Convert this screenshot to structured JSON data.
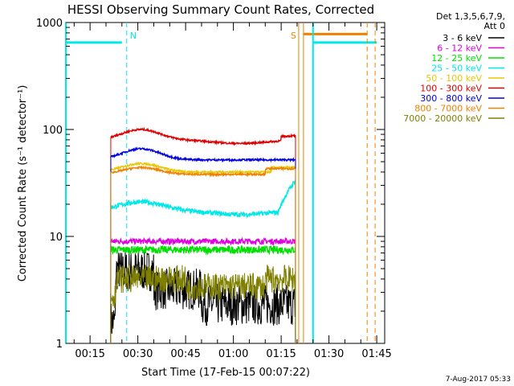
{
  "chart_data": {
    "type": "line",
    "title": "HESSI Observing Summary Count Rates, Corrected",
    "xlabel": "Start Time (17-Feb-15 00:07:22)",
    "ylabel": "Corrected Count Rate (s⁻¹ detector⁻¹)",
    "yscale": "log",
    "ylim": [
      1,
      1000
    ],
    "y_ticks": [
      {
        "value": 1,
        "label": "1"
      },
      {
        "value": 10,
        "label": "10"
      },
      {
        "value": 100,
        "label": "100"
      },
      {
        "value": 1000,
        "label": "1000"
      }
    ],
    "xlim_minutes": [
      7.4,
      47.5
    ],
    "x_ticks": [
      {
        "min": 15,
        "label": "00:15"
      },
      {
        "min": 30,
        "label": "00:30"
      },
      {
        "min": 45,
        "label": "00:45"
      },
      {
        "min": 60,
        "label": "01:00"
      },
      {
        "min": 75,
        "label": "01:15"
      },
      {
        "min": 90,
        "label": "01:30"
      },
      {
        "min": 105,
        "label": "01:45"
      }
    ],
    "legend_header": [
      "Det 1,3,5,6,7,9,",
      "Att 0"
    ],
    "legend_position": "top-right",
    "series": [
      {
        "name": "3 - 6 keV",
        "color": "#000000",
        "level": 2.5,
        "noise": 0.45
      },
      {
        "name": "6 - 12 keV",
        "color": "#e000e0",
        "level": 9.0,
        "noise": 0.06
      },
      {
        "name": "12 - 25 keV",
        "color": "#00e000",
        "level": 7.5,
        "noise": 0.08
      },
      {
        "name": "25 - 50 keV",
        "color": "#00e8e8",
        "level": 17,
        "noise": 0.05
      },
      {
        "name": "50 - 100 keV",
        "color": "#e8c800",
        "level": 42,
        "noise": 0.02
      },
      {
        "name": "100 - 300 keV",
        "color": "#e00000",
        "level": 80,
        "noise": 0.02
      },
      {
        "name": "300 - 800 keV",
        "color": "#0000e0",
        "level": 50,
        "noise": 0.02
      },
      {
        "name": "800 - 7000 keV",
        "color": "#f08000",
        "level": 40,
        "noise": 0.02
      },
      {
        "name": "7000 - 20000 keV",
        "color": "#808000",
        "level": 3.5,
        "noise": 0.3
      }
    ],
    "time_range_minutes": [
      21.5,
      79.5
    ],
    "annotations": [
      {
        "label": "N",
        "color": "#00e8e8",
        "x_min": 26.5
      },
      {
        "label": "S",
        "color": "#f08000",
        "x_min": 80.5
      }
    ],
    "colors": {
      "cyan": "#00e8e8",
      "orange": "#f08000"
    }
  },
  "footer": {
    "timestamp": "7-Aug-2017 05:33"
  }
}
